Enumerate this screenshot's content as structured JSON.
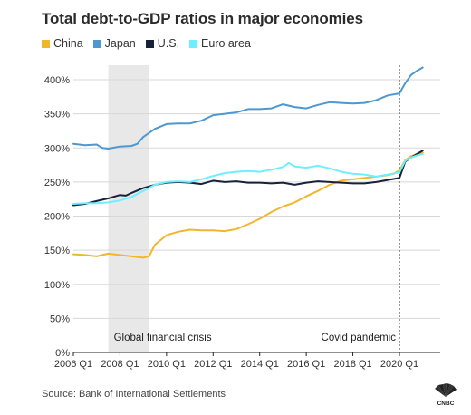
{
  "title": "Total debt-to-GDP ratios in major economies",
  "source": "Source: Bank of International Settlements",
  "logo_text": "CNBC",
  "chart_data": {
    "type": "line",
    "title": "Total debt-to-GDP ratios in major economies",
    "x_unit": "year",
    "xlim": [
      2006.0,
      2021.75
    ],
    "ylim": [
      0,
      400
    ],
    "y_ticks": [
      0,
      50,
      100,
      150,
      200,
      250,
      300,
      350,
      400
    ],
    "y_tick_labels": [
      "0%",
      "50%",
      "100%",
      "150%",
      "200%",
      "250%",
      "300%",
      "350%",
      "400%"
    ],
    "x_ticks": [
      2006,
      2008,
      2010,
      2012,
      2014,
      2016,
      2018,
      2020
    ],
    "x_tick_labels": [
      "2006 Q1",
      "2008 Q1",
      "2010 Q1",
      "2012 Q1",
      "2014 Q1",
      "2016 Q1",
      "2018 Q1",
      "2020 Q1"
    ],
    "grid": true,
    "legend_position": "top-left",
    "annotations": [
      {
        "type": "shaded-region",
        "x_start": 2007.5,
        "x_end": 2009.25,
        "label": "Global financial crisis"
      },
      {
        "type": "vertical-line",
        "x": 2020.0,
        "label": "Covid pandemic"
      }
    ],
    "series": [
      {
        "name": "China",
        "color": "#f2b62b",
        "points": [
          [
            2006.0,
            144
          ],
          [
            2006.5,
            143
          ],
          [
            2007.0,
            141
          ],
          [
            2007.5,
            145
          ],
          [
            2008.0,
            143
          ],
          [
            2008.5,
            141
          ],
          [
            2009.0,
            139
          ],
          [
            2009.25,
            141
          ],
          [
            2009.5,
            158
          ],
          [
            2010.0,
            172
          ],
          [
            2010.5,
            177
          ],
          [
            2011.0,
            180
          ],
          [
            2011.5,
            179
          ],
          [
            2012.0,
            179
          ],
          [
            2012.5,
            178
          ],
          [
            2013.0,
            181
          ],
          [
            2013.5,
            188
          ],
          [
            2014.0,
            196
          ],
          [
            2014.5,
            206
          ],
          [
            2015.0,
            214
          ],
          [
            2015.5,
            220
          ],
          [
            2016.0,
            229
          ],
          [
            2016.5,
            237
          ],
          [
            2017.0,
            246
          ],
          [
            2017.5,
            252
          ],
          [
            2018.0,
            254
          ],
          [
            2018.5,
            256
          ],
          [
            2019.0,
            258
          ],
          [
            2019.5,
            260
          ],
          [
            2019.75,
            262
          ],
          [
            2020.0,
            267
          ],
          [
            2020.25,
            282
          ],
          [
            2020.5,
            288
          ],
          [
            2020.75,
            291
          ],
          [
            2021.0,
            293
          ]
        ]
      },
      {
        "name": "Japan",
        "color": "#4f97cf",
        "points": [
          [
            2006.0,
            306
          ],
          [
            2006.5,
            304
          ],
          [
            2007.0,
            305
          ],
          [
            2007.25,
            300
          ],
          [
            2007.5,
            299
          ],
          [
            2008.0,
            302
          ],
          [
            2008.5,
            303
          ],
          [
            2008.75,
            306
          ],
          [
            2009.0,
            316
          ],
          [
            2009.5,
            328
          ],
          [
            2010.0,
            335
          ],
          [
            2010.5,
            336
          ],
          [
            2011.0,
            336
          ],
          [
            2011.5,
            340
          ],
          [
            2012.0,
            348
          ],
          [
            2012.5,
            350
          ],
          [
            2013.0,
            352
          ],
          [
            2013.5,
            357
          ],
          [
            2014.0,
            357
          ],
          [
            2014.5,
            358
          ],
          [
            2015.0,
            364
          ],
          [
            2015.5,
            360
          ],
          [
            2016.0,
            358
          ],
          [
            2016.5,
            363
          ],
          [
            2017.0,
            367
          ],
          [
            2017.5,
            366
          ],
          [
            2018.0,
            365
          ],
          [
            2018.5,
            366
          ],
          [
            2019.0,
            370
          ],
          [
            2019.5,
            377
          ],
          [
            2020.0,
            380
          ],
          [
            2020.25,
            395
          ],
          [
            2020.5,
            407
          ],
          [
            2020.75,
            413
          ],
          [
            2021.0,
            418
          ]
        ]
      },
      {
        "name": "U.S.",
        "color": "#16213a",
        "points": [
          [
            2006.0,
            216
          ],
          [
            2006.5,
            218
          ],
          [
            2007.0,
            222
          ],
          [
            2007.5,
            226
          ],
          [
            2008.0,
            231
          ],
          [
            2008.25,
            230
          ],
          [
            2008.5,
            234
          ],
          [
            2009.0,
            241
          ],
          [
            2009.5,
            246
          ],
          [
            2010.0,
            249
          ],
          [
            2010.5,
            250
          ],
          [
            2011.0,
            249
          ],
          [
            2011.5,
            247
          ],
          [
            2012.0,
            252
          ],
          [
            2012.5,
            250
          ],
          [
            2013.0,
            251
          ],
          [
            2013.5,
            249
          ],
          [
            2014.0,
            249
          ],
          [
            2014.5,
            248
          ],
          [
            2015.0,
            249
          ],
          [
            2015.5,
            246
          ],
          [
            2016.0,
            249
          ],
          [
            2016.5,
            251
          ],
          [
            2017.0,
            250
          ],
          [
            2017.5,
            249
          ],
          [
            2018.0,
            248
          ],
          [
            2018.5,
            248
          ],
          [
            2019.0,
            250
          ],
          [
            2019.5,
            253
          ],
          [
            2020.0,
            256
          ],
          [
            2020.25,
            280
          ],
          [
            2020.5,
            286
          ],
          [
            2020.75,
            291
          ],
          [
            2021.0,
            296
          ]
        ]
      },
      {
        "name": "Euro area",
        "color": "#6feeff",
        "points": [
          [
            2006.0,
            218
          ],
          [
            2006.5,
            219
          ],
          [
            2007.0,
            219
          ],
          [
            2007.5,
            220
          ],
          [
            2008.0,
            223
          ],
          [
            2008.5,
            228
          ],
          [
            2009.0,
            237
          ],
          [
            2009.5,
            246
          ],
          [
            2010.0,
            250
          ],
          [
            2010.5,
            251
          ],
          [
            2011.0,
            250
          ],
          [
            2011.5,
            254
          ],
          [
            2012.0,
            259
          ],
          [
            2012.5,
            263
          ],
          [
            2013.0,
            265
          ],
          [
            2013.5,
            266
          ],
          [
            2014.0,
            265
          ],
          [
            2014.5,
            268
          ],
          [
            2015.0,
            272
          ],
          [
            2015.25,
            278
          ],
          [
            2015.5,
            273
          ],
          [
            2016.0,
            271
          ],
          [
            2016.5,
            274
          ],
          [
            2017.0,
            270
          ],
          [
            2017.5,
            265
          ],
          [
            2018.0,
            262
          ],
          [
            2018.5,
            261
          ],
          [
            2019.0,
            258
          ],
          [
            2019.5,
            261
          ],
          [
            2020.0,
            264
          ],
          [
            2020.25,
            281
          ],
          [
            2020.5,
            286
          ],
          [
            2020.75,
            289
          ],
          [
            2021.0,
            291
          ]
        ]
      }
    ]
  }
}
